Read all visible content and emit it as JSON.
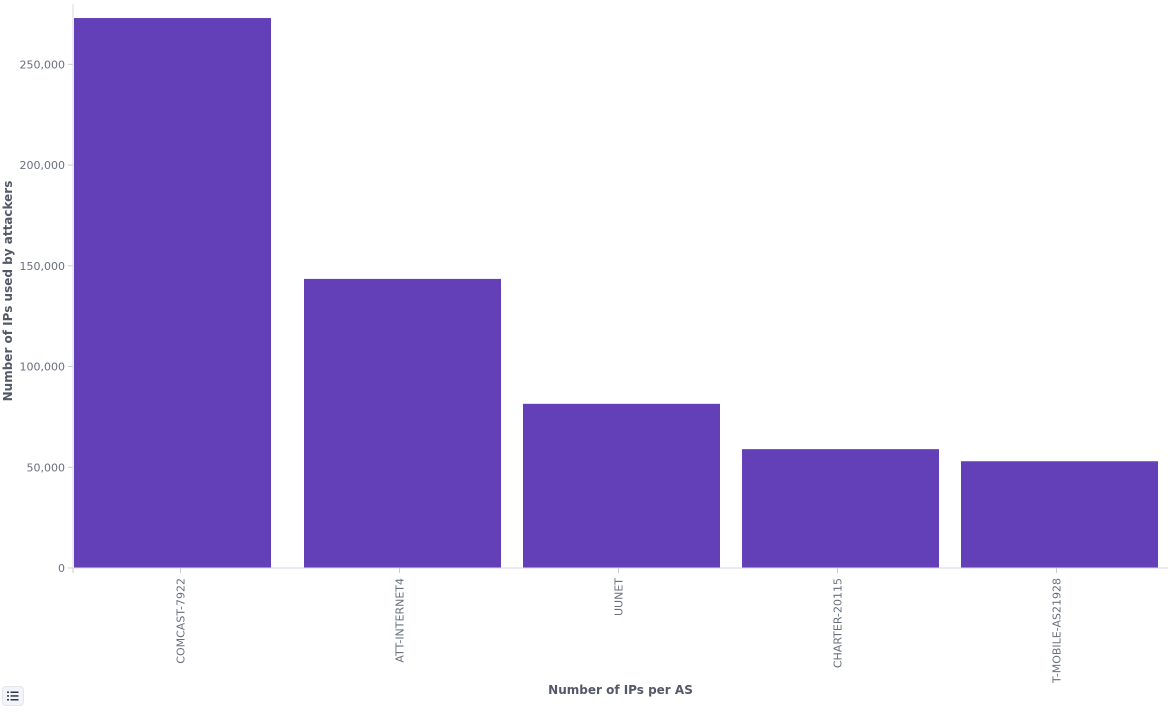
{
  "chart_data": {
    "type": "bar",
    "categories": [
      "COMCAST-7922",
      "ATT-INTERNET4",
      "UUNET",
      "CHARTER-20115",
      "T-MOBILE-AS21928"
    ],
    "series": [
      {
        "values": [
          273000,
          143500,
          81500,
          59000,
          53000
        ]
      }
    ],
    "xlabel": "Number of IPs per AS",
    "ylabel": "Number of IPs used by attackers",
    "ylim": [
      0,
      275000
    ],
    "yticks": [
      0,
      50000,
      100000,
      150000,
      200000,
      250000
    ],
    "ytick_labels": [
      "0",
      "50,000",
      "100,000",
      "150,000",
      "200,000",
      "250,000"
    ],
    "bar_color": "#6440b8",
    "grid": false,
    "legend": "hidden"
  },
  "controls": {
    "legend_toggle_icon": "list-icon"
  }
}
